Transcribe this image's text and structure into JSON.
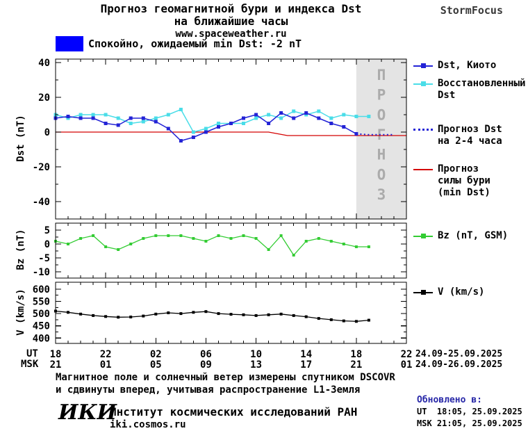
{
  "header": {
    "title_line1": "Прогноз геомагнитной бури и индекса Dst",
    "title_line2": "на ближайшие часы",
    "site": "www.spaceweather.ru",
    "brand": "StormFocus"
  },
  "colors": {
    "quiet_box": "#0000ff",
    "updated_label": "#2828a8"
  },
  "status": {
    "text": "Спокойно, ожидаемый min Dst: -2 nT"
  },
  "legend": {
    "dst_kyoto": "Dst, Киото",
    "dst_restored_lines": [
      "Восстановленный",
      "Dst"
    ],
    "forecast_lines": [
      "Прогноз Dst",
      "на 2-4 часа"
    ],
    "storm_lines": [
      "Прогноз",
      "силы бури",
      "(min Dst)"
    ],
    "bz": "Bz (nT, GSM)",
    "v": "V (km/s)"
  },
  "axes": {
    "dst_label": "Dst (nT)",
    "bz_label": "Bz (nT)",
    "v_label": "V (km/s)",
    "ut_label": "UT",
    "msk_label": "MSK",
    "ut_date": "24.09-25.09.2025",
    "msk_date": "24.09-26.09.2025"
  },
  "footer": {
    "note_line1": "Магнитное поле и солнечный ветер измерены спутником DSCOVR",
    "note_line2": "и сдвинуты вперед, учитывая распространение L1-Земля",
    "logo": "ИКИ",
    "institute": "Институт космических исследований РАН",
    "site": "iki.cosmos.ru",
    "updated_label": "Обновлено в:",
    "updated_ut": "UT  18:05, 25.09.2025",
    "updated_msk": "MSK 21:05, 25.09.2025"
  },
  "chart_data": {
    "type": "line",
    "title": "Прогноз геомагнитной бури и индекса Dst на ближайшие часы",
    "xaxis": {
      "xlim": [
        0,
        28
      ],
      "ticks_hours": [
        0,
        4,
        8,
        12,
        16,
        20,
        24,
        28
      ],
      "ut_labels": [
        "18",
        "22",
        "02",
        "06",
        "10",
        "14",
        "18",
        "22"
      ],
      "msk_labels": [
        "21",
        "01",
        "05",
        "09",
        "13",
        "17",
        "21",
        "01"
      ],
      "ut_date_range": "24.09-25.09.2025",
      "msk_date_range": "24.09-26.09.2025"
    },
    "panels": [
      {
        "ylabel": "Dst (nT)",
        "ylim": [
          -50,
          42
        ],
        "yticks": [
          40,
          20,
          0,
          -20,
          -40
        ],
        "forecast_band_start_hour": 24,
        "band_label": "ПРОГНОЗ",
        "series": [
          {
            "name": "Прогноз силы бури (min Dst)",
            "color": "#d40000",
            "width": 1.3,
            "x": [
              0,
              17,
              18.5,
              28
            ],
            "values": [
              0,
              0,
              -2,
              -2
            ]
          },
          {
            "name": "Восстановленный Dst",
            "color": "#4adde8",
            "marker": "square",
            "marker_size": 5,
            "x": [
              0,
              1,
              2,
              3,
              4,
              5,
              6,
              7,
              8,
              9,
              10,
              11,
              12,
              13,
              14,
              15,
              16,
              17,
              18,
              19,
              20,
              21,
              22,
              23,
              24,
              25
            ],
            "values": [
              10,
              8,
              10,
              10,
              10,
              8,
              5,
              6,
              8,
              10,
              13,
              0,
              2,
              5,
              5,
              5,
              8,
              10,
              8,
              12,
              10,
              12,
              8,
              10,
              9,
              9
            ]
          },
          {
            "name": "Dst, Киото",
            "color": "#2323d6",
            "marker": "square",
            "marker_size": 5,
            "x": [
              0,
              1,
              2,
              3,
              4,
              5,
              6,
              7,
              8,
              9,
              10,
              11,
              12,
              13,
              14,
              15,
              16,
              17,
              18,
              19,
              20,
              21,
              22,
              23,
              24
            ],
            "values": [
              8,
              9,
              8,
              8,
              5,
              4,
              8,
              8,
              6,
              2,
              -5,
              -3,
              0,
              3,
              5,
              8,
              10,
              5,
              11,
              8,
              11,
              8,
              5,
              3,
              -1
            ]
          },
          {
            "name": "Прогноз Dst на 2-4 часа",
            "color": "#2323d6",
            "style": "dotted",
            "x": [
              24,
              25,
              26,
              27
            ],
            "values": [
              -1,
              -1.5,
              -1.5,
              -1.5
            ]
          }
        ]
      },
      {
        "ylabel": "Bz (nT)",
        "ylim": [
          -12.25,
          7.5
        ],
        "yticks": [
          5,
          0,
          -5,
          -10
        ],
        "series": [
          {
            "name": "Bz (nT, GSM)",
            "color": "#33cc33",
            "marker": "square",
            "marker_size": 4,
            "width": 1.3,
            "x": [
              0,
              1,
              2,
              3,
              4,
              5,
              6,
              7,
              8,
              9,
              10,
              11,
              12,
              13,
              14,
              15,
              16,
              17,
              18,
              19,
              20,
              21,
              22,
              23,
              24,
              25
            ],
            "values": [
              1,
              0,
              2,
              3,
              -1,
              -2,
              0,
              2,
              3,
              3,
              3,
              2,
              1,
              3,
              2,
              3,
              2,
              -2,
              3,
              -4,
              1,
              2,
              1,
              0,
              -1,
              -1
            ]
          }
        ]
      },
      {
        "ylabel": "V (km/s)",
        "ylim": [
          378,
          628
        ],
        "yticks": [
          600,
          550,
          500,
          450,
          400
        ],
        "series": [
          {
            "name": "V (km/s)",
            "color": "#000000",
            "marker": "square",
            "marker_size": 4,
            "width": 1.3,
            "x": [
              0,
              1,
              2,
              3,
              4,
              5,
              6,
              7,
              8,
              9,
              10,
              11,
              12,
              13,
              14,
              15,
              16,
              17,
              18,
              19,
              20,
              21,
              22,
              23,
              24,
              25
            ],
            "values": [
              510,
              505,
              498,
              492,
              488,
              485,
              486,
              490,
              498,
              503,
              500,
              505,
              508,
              500,
              497,
              495,
              492,
              495,
              498,
              492,
              487,
              480,
              475,
              470,
              468,
              473
            ]
          }
        ]
      }
    ]
  }
}
